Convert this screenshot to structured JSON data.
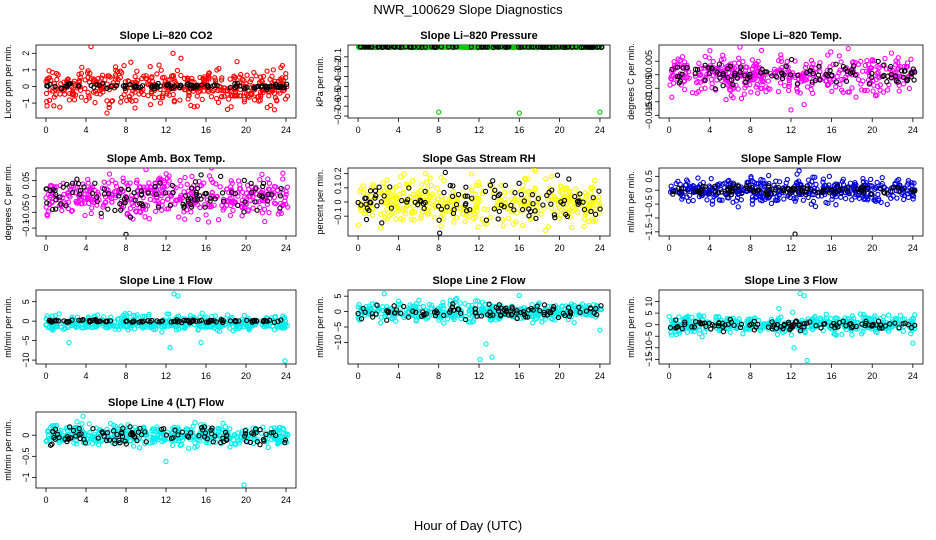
{
  "figure": {
    "title": "NWR_100629  Slope Diagnostics",
    "xlabel": "Hour of Day (UTC)"
  },
  "chart_data": [
    {
      "type": "scatter",
      "title": "Slope Li–820 CO2",
      "ylabel": "Licor ppm per min.",
      "xlim": [
        -1,
        25
      ],
      "ylim": [
        -1.9,
        2.5
      ],
      "xticks": [
        0,
        4,
        8,
        12,
        16,
        20,
        24
      ],
      "yticks": [
        -1,
        0,
        1,
        2
      ],
      "color": "#ff0000",
      "series": [
        {
          "color": "#ff0000",
          "spread": 0.55,
          "outliers": [
            [
              4.5,
              2.4
            ],
            [
              6.1,
              -1.6
            ],
            [
              12.7,
              2.0
            ],
            [
              13.5,
              1.7
            ],
            [
              8.9,
              -1.3
            ],
            [
              19.1,
              1.5
            ]
          ]
        },
        {
          "color": "#000000",
          "spread": 0.08,
          "outliers": []
        }
      ]
    },
    {
      "type": "scatter",
      "title": "Slope Li–820 Pressure",
      "ylabel": "kPa per min.",
      "xlim": [
        -1,
        25
      ],
      "ylim": [
        -0.72,
        0.02
      ],
      "xticks": [
        0,
        4,
        8,
        12,
        16,
        20,
        24
      ],
      "yticks": [
        -0.1,
        -0.2,
        -0.3,
        -0.4,
        -0.5,
        -0.6,
        -0.7
      ],
      "color": "#00cc00",
      "series": [
        {
          "color": "#00cc00",
          "spread": 0.003,
          "outliers": [
            [
              8.0,
              -0.66
            ],
            [
              16.0,
              -0.67
            ],
            [
              24.0,
              -0.66
            ]
          ]
        },
        {
          "color": "#000000",
          "spread": 0.002,
          "outliers": []
        }
      ]
    },
    {
      "type": "scatter",
      "title": "Slope Li–820 Temp.",
      "ylabel": "degrees C per min.",
      "xlim": [
        -1,
        25
      ],
      "ylim": [
        -0.016,
        0.011
      ],
      "xticks": [
        0,
        4,
        8,
        12,
        16,
        20,
        24
      ],
      "yticks": [
        -0.015,
        -0.01,
        -0.005,
        0.0,
        0.005
      ],
      "color": "#ff00ff",
      "series": [
        {
          "color": "#ff00ff",
          "spread": 0.0035,
          "outliers": [
            [
              12.0,
              -0.013
            ],
            [
              13.3,
              -0.011
            ],
            [
              9.1,
              0.009
            ],
            [
              21.9,
              0.008
            ]
          ]
        },
        {
          "color": "#000000",
          "spread": 0.002,
          "outliers": []
        }
      ]
    },
    {
      "type": "scatter",
      "title": "Slope Amb. Box Temp.",
      "ylabel": "degrees C per min.",
      "xlim": [
        -1,
        25
      ],
      "ylim": [
        -0.125,
        0.09
      ],
      "xticks": [
        0,
        4,
        8,
        12,
        16,
        20,
        24
      ],
      "yticks": [
        -0.1,
        -0.05,
        0.0,
        0.05
      ],
      "color": "#ff00ff",
      "series": [
        {
          "color": "#ff00ff",
          "spread": 0.032,
          "outliers": [
            [
              10.0,
              0.085
            ],
            [
              13.9,
              0.06
            ],
            [
              21.6,
              0.07
            ]
          ]
        },
        {
          "color": "#000000",
          "spread": 0.025,
          "outliers": [
            [
              8.0,
              -0.12
            ]
          ]
        }
      ]
    },
    {
      "type": "scatter",
      "title": "Slope Gas Stream RH",
      "ylabel": "percent per min.",
      "xlim": [
        -1,
        25
      ],
      "ylim": [
        -0.24,
        0.24
      ],
      "xticks": [
        0,
        4,
        8,
        12,
        16,
        20,
        24
      ],
      "yticks": [
        -0.1,
        0.0,
        0.1,
        0.2
      ],
      "color": "#ffff00",
      "series": [
        {
          "color": "#ffff00",
          "spread": 0.08,
          "outliers": [
            [
              17.6,
              0.22
            ],
            [
              18.6,
              -0.2
            ],
            [
              6.7,
              0.2
            ],
            [
              21.2,
              -0.18
            ]
          ]
        },
        {
          "color": "#000000",
          "spread": 0.07,
          "outliers": [
            [
              8.1,
              -0.22
            ]
          ]
        }
      ]
    },
    {
      "type": "scatter",
      "title": "Slope Sample Flow",
      "ylabel": "ml/min per min.",
      "xlim": [
        -1,
        25
      ],
      "ylim": [
        -1.65,
        0.8
      ],
      "xticks": [
        0,
        4,
        8,
        12,
        16,
        20,
        24
      ],
      "yticks": [
        -1.5,
        -1.0,
        -0.5,
        0.0,
        0.5
      ],
      "color": "#0000dd",
      "series": [
        {
          "color": "#0000dd",
          "spread": 0.22,
          "outliers": [
            [
              12.8,
              0.7
            ],
            [
              12.6,
              0.58
            ],
            [
              6.8,
              -0.6
            ],
            [
              14.0,
              -0.5
            ]
          ]
        },
        {
          "color": "#000000",
          "spread": 0.08,
          "outliers": [
            [
              12.4,
              -1.58
            ]
          ]
        }
      ]
    },
    {
      "type": "scatter",
      "title": "Slope Line 1 Flow",
      "ylabel": "ml/min per min.",
      "xlim": [
        -1,
        25
      ],
      "ylim": [
        -11,
        8
      ],
      "xticks": [
        0,
        4,
        8,
        12,
        16,
        20,
        24
      ],
      "yticks": [
        -10,
        -5,
        0,
        5
      ],
      "color": "#00eeee",
      "series": [
        {
          "color": "#00eeee",
          "spread": 1.0,
          "band": -1.2,
          "outliers": [
            [
              12.8,
              7.0
            ],
            [
              13.2,
              6.5
            ],
            [
              12.4,
              -6.8
            ],
            [
              15.5,
              -5.5
            ],
            [
              23.9,
              -10.2
            ],
            [
              2.3,
              -5.5
            ]
          ]
        },
        {
          "color": "#000000",
          "spread": 0.2,
          "outliers": []
        }
      ]
    },
    {
      "type": "scatter",
      "title": "Slope Line 2 Flow",
      "ylabel": "ml/min per min.",
      "xlim": [
        -1,
        25
      ],
      "ylim": [
        -17,
        7
      ],
      "xticks": [
        0,
        4,
        8,
        12,
        16,
        20,
        24
      ],
      "yticks": [
        -10,
        -5,
        0,
        5
      ],
      "color": "#00eeee",
      "series": [
        {
          "color": "#00eeee",
          "spread": 1.5,
          "outliers": [
            [
              12.1,
              -15.5
            ],
            [
              12.7,
              -10.5
            ],
            [
              13.3,
              -14.8
            ],
            [
              2.6,
              5.8
            ],
            [
              16.0,
              5.2
            ],
            [
              24.0,
              -6.0
            ]
          ]
        },
        {
          "color": "#000000",
          "spread": 1.2,
          "outliers": []
        }
      ]
    },
    {
      "type": "scatter",
      "title": "Slope Line 3 Flow",
      "ylabel": "ml/min per min.",
      "xlim": [
        -1,
        25
      ],
      "ylim": [
        -17,
        15
      ],
      "xticks": [
        0,
        4,
        8,
        12,
        16,
        20,
        24
      ],
      "yticks": [
        -15,
        -10,
        -5,
        0,
        5,
        10
      ],
      "color": "#00eeee",
      "series": [
        {
          "color": "#00eeee",
          "spread": 2.0,
          "outliers": [
            [
              12.9,
              13.5
            ],
            [
              13.3,
              12.5
            ],
            [
              12.3,
              -10.0
            ],
            [
              13.6,
              -15.5
            ],
            [
              24.0,
              -8.0
            ],
            [
              10.8,
              7.0
            ]
          ]
        },
        {
          "color": "#000000",
          "spread": 1.2,
          "outliers": []
        }
      ]
    },
    {
      "type": "scatter",
      "title": "Slope Line 4 (LT) Flow",
      "ylabel": "ml/min per min.",
      "xlim": [
        -1,
        25
      ],
      "ylim": [
        -1.25,
        0.55
      ],
      "xticks": [
        0,
        4,
        8,
        12,
        16,
        20,
        24
      ],
      "yticks": [
        -1.0,
        -0.5,
        0.0
      ],
      "color": "#00eeee",
      "series": [
        {
          "color": "#00eeee",
          "spread": 0.12,
          "outliers": [
            [
              19.8,
              -1.18
            ],
            [
              12.0,
              -0.62
            ],
            [
              3.7,
              0.45
            ],
            [
              3.1,
              0.32
            ],
            [
              14.9,
              0.3
            ]
          ]
        },
        {
          "color": "#000000",
          "spread": 0.1,
          "outliers": []
        }
      ]
    }
  ]
}
